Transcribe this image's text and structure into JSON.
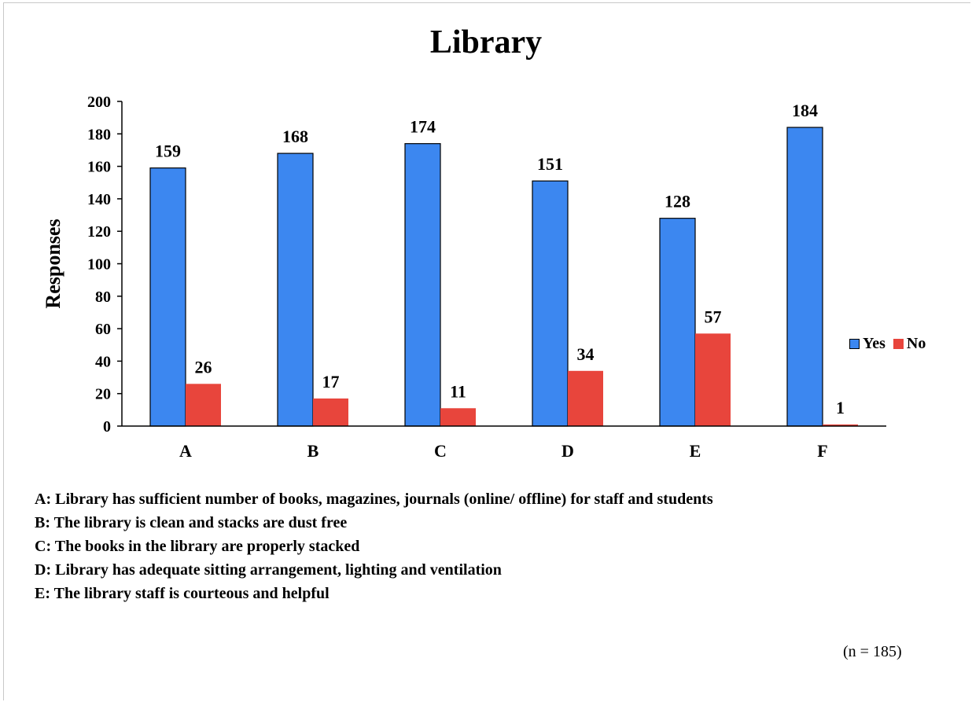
{
  "chart_data": {
    "type": "bar",
    "title": "Library",
    "xlabel": "",
    "ylabel": "Responses",
    "categories": [
      "A",
      "B",
      "C",
      "D",
      "E",
      "F"
    ],
    "series": [
      {
        "name": "Yes",
        "values": [
          159,
          168,
          174,
          151,
          128,
          184
        ],
        "color": "#3c87f0"
      },
      {
        "name": "No",
        "values": [
          26,
          17,
          11,
          34,
          57,
          1
        ],
        "color": "#e8453c"
      }
    ],
    "ylim": [
      0,
      200
    ],
    "yticks": [
      0,
      20,
      40,
      60,
      80,
      100,
      120,
      140,
      160,
      180,
      200
    ],
    "grid": false,
    "legend_position": "right"
  },
  "notes": [
    "A: Library has sufficient number of books, magazines, journals (online/ offline) for staff and students",
    "B: The library is clean and stacks are dust free",
    "C: The books in the library are properly stacked",
    "D: Library has adequate sitting arrangement, lighting and ventilation",
    "E: The library staff is courteous and helpful"
  ],
  "sample_size": "(n = 185)"
}
